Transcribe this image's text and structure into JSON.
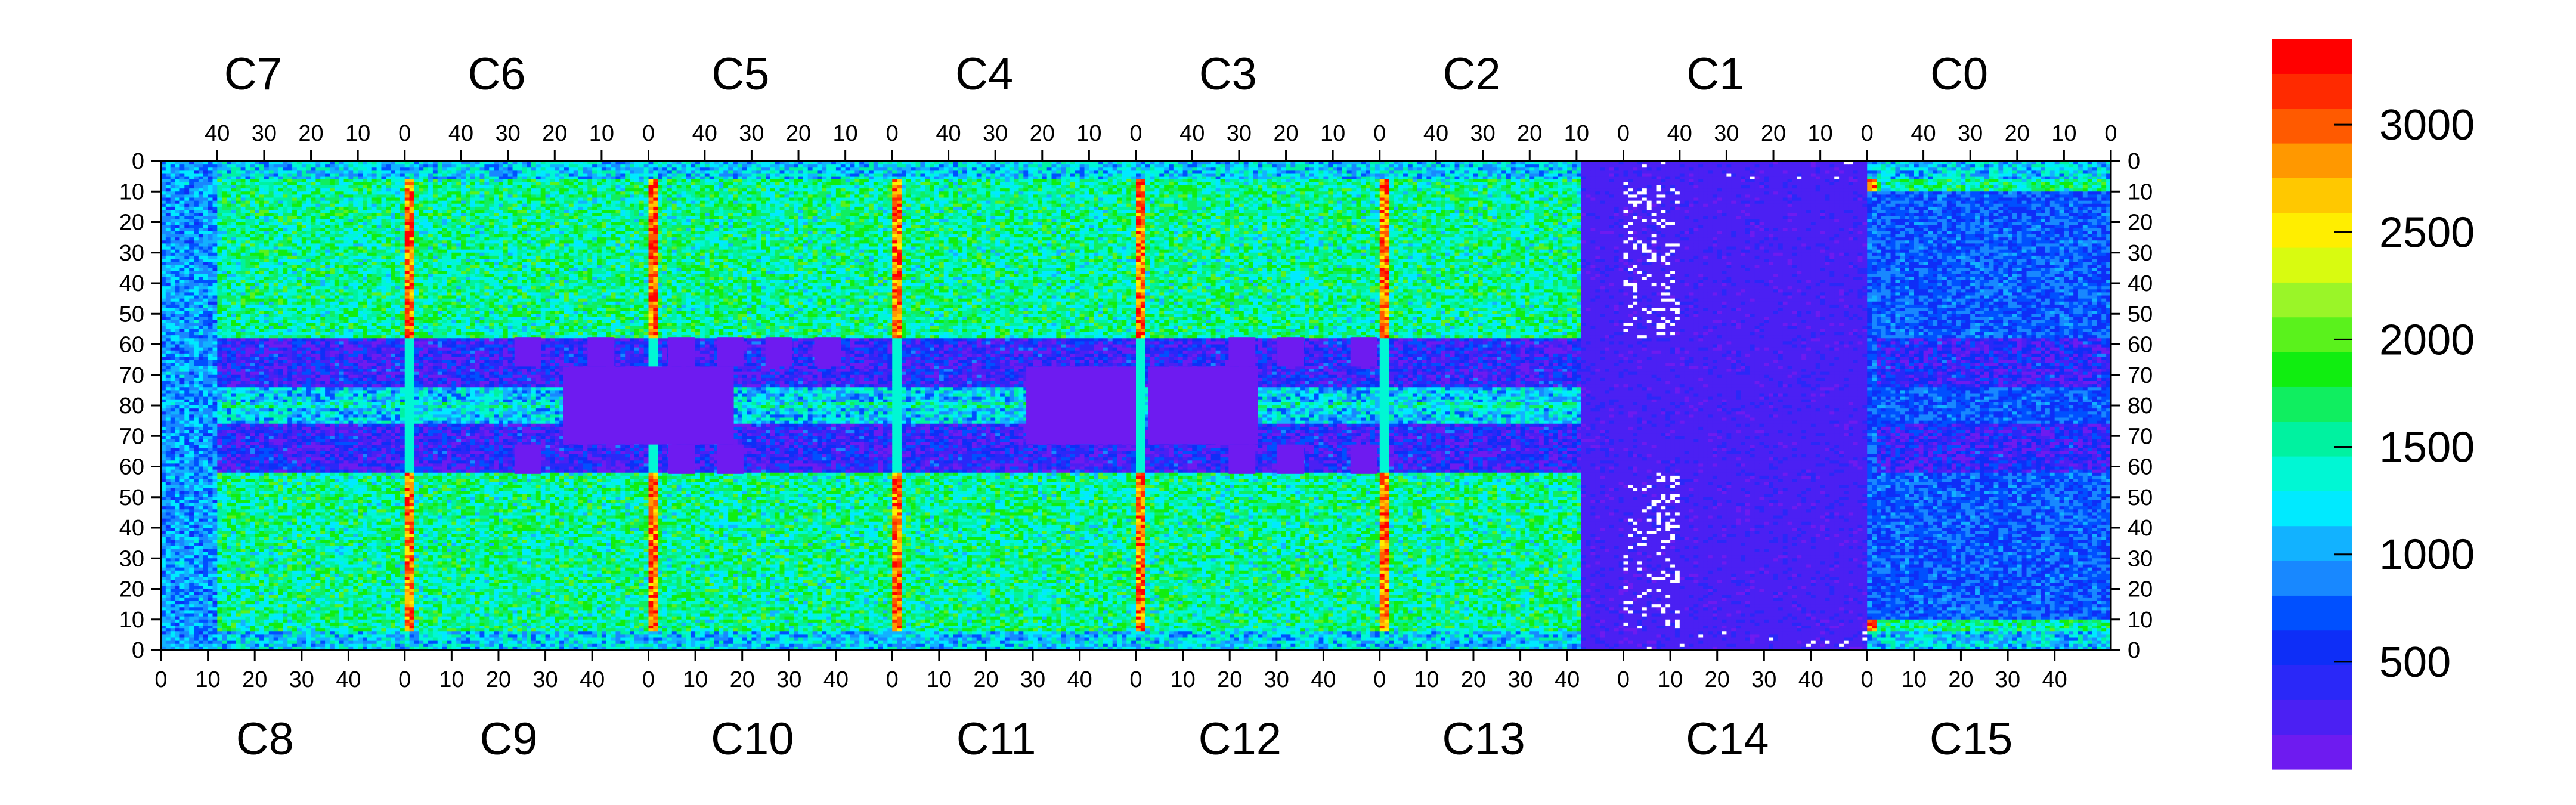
{
  "chart_data": {
    "type": "heatmap",
    "title": "",
    "xlabel": "",
    "ylabel": "",
    "grid": false,
    "chips_top": [
      "C7",
      "C6",
      "C5",
      "C4",
      "C3",
      "C2",
      "C1",
      "C0"
    ],
    "chips_bottom": [
      "C8",
      "C9",
      "C10",
      "C11",
      "C12",
      "C13",
      "C14",
      "C15"
    ],
    "x_tick_labels_top": [
      "40",
      "30",
      "20",
      "10",
      "0"
    ],
    "x_tick_labels_bottom": [
      "0",
      "10",
      "20",
      "30",
      "40"
    ],
    "y_tick_labels": [
      "0",
      "10",
      "20",
      "30",
      "40",
      "50",
      "60",
      "70",
      "80",
      "70",
      "60",
      "50",
      "40",
      "30",
      "20",
      "10",
      "0"
    ],
    "columns_per_chip": 52,
    "rows_per_chip": 80,
    "zlim": [
      0,
      3400
    ],
    "colorbar_ticks": [
      500,
      1000,
      1500,
      2000,
      2500,
      3000
    ],
    "colorbar_tick_labels": [
      "500",
      "1000",
      "1500",
      "2000",
      "2500",
      "3000"
    ],
    "colormap": [
      "#6e1bf0",
      "#4b20f3",
      "#2a28f8",
      "#0e2ef7",
      "#0050ff",
      "#1888ff",
      "#12b2ff",
      "#00eaff",
      "#00f7d4",
      "#00f2a0",
      "#10ee60",
      "#10ee10",
      "#5af21c",
      "#9af528",
      "#d8fb10",
      "#ffee00",
      "#ffc800",
      "#ff9800",
      "#ff5a00",
      "#ff2a00",
      "#ff0000"
    ],
    "blob_fill_color": "#6e1bf0",
    "empty_bin_color": "#ffffff"
  }
}
